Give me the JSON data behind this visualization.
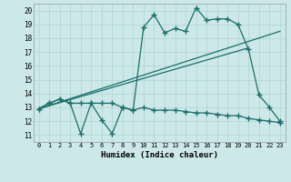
{
  "xlabel": "Humidex (Indice chaleur)",
  "background_color": "#cce8e8",
  "line_color": "#1a6e6a",
  "grid_color": "#b0d4d4",
  "xlim": [
    -0.5,
    23.5
  ],
  "ylim": [
    10.5,
    20.5
  ],
  "yticks": [
    11,
    12,
    13,
    14,
    15,
    16,
    17,
    18,
    19,
    20
  ],
  "line1_x": [
    0,
    1,
    2,
    3,
    4,
    5,
    6,
    7,
    8,
    9,
    10,
    11,
    12,
    13,
    14,
    15,
    16,
    17,
    18,
    19,
    20,
    21,
    22,
    23
  ],
  "line1_y": [
    12.9,
    13.3,
    13.6,
    13.3,
    11.1,
    13.3,
    12.1,
    11.1,
    13.0,
    12.8,
    18.8,
    19.7,
    18.4,
    18.7,
    18.5,
    20.2,
    19.3,
    19.4,
    19.4,
    19.0,
    17.2,
    13.9,
    13.0,
    12.0
  ],
  "line2_x": [
    0,
    1,
    2,
    3,
    4,
    5,
    6,
    7,
    8,
    9,
    10,
    11,
    12,
    13,
    14,
    15,
    16,
    17,
    18,
    19,
    20,
    21,
    22,
    23
  ],
  "line2_y": [
    12.9,
    13.3,
    13.6,
    13.3,
    13.3,
    13.3,
    13.3,
    13.3,
    13.0,
    12.8,
    13.0,
    12.8,
    12.8,
    12.8,
    12.7,
    12.6,
    12.6,
    12.5,
    12.4,
    12.4,
    12.2,
    12.1,
    12.0,
    11.9
  ],
  "line3_x": [
    0,
    23
  ],
  "line3_y": [
    12.9,
    18.5
  ],
  "line4_x": [
    0,
    20
  ],
  "line4_y": [
    12.9,
    17.3
  ]
}
